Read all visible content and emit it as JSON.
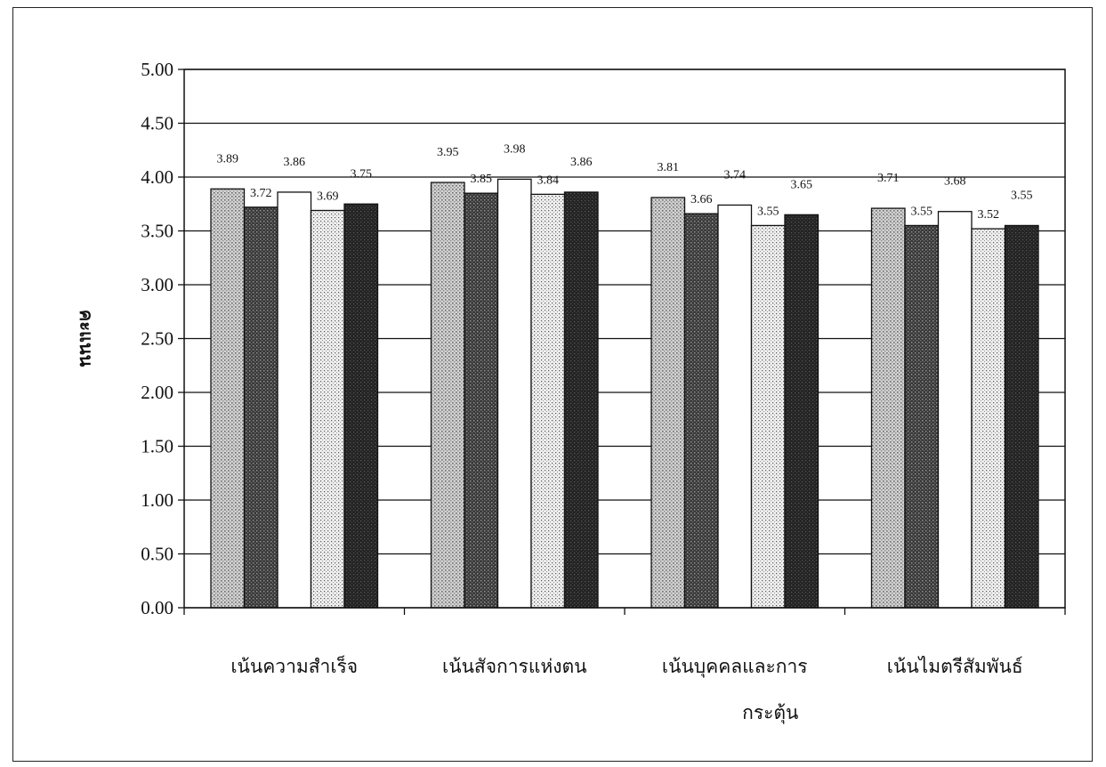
{
  "chart_data": {
    "type": "bar",
    "title": "",
    "xlabel": "",
    "ylabel": "คะแนน",
    "ylim": [
      0,
      5
    ],
    "yticks": [
      "0.00",
      "0.50",
      "1.00",
      "1.50",
      "2.00",
      "2.50",
      "3.00",
      "3.50",
      "4.00",
      "4.50",
      "5.00"
    ],
    "grid": true,
    "categories": [
      [
        "เน้นความสำเร็จ"
      ],
      [
        "เน้นสัจการแห่งตน"
      ],
      [
        "เน้นบุคคลและการ",
        "กระตุ้น"
      ],
      [
        "เน้นไมตรีสัมพันธ์"
      ]
    ],
    "series": [
      {
        "values": [
          3.89,
          3.95,
          3.81,
          3.71
        ],
        "labels": [
          "3.89",
          "3.95",
          "3.81",
          "3.71"
        ],
        "pattern": "light-dots"
      },
      {
        "values": [
          3.72,
          3.85,
          3.66,
          3.55
        ],
        "labels": [
          "3.72",
          "3.85",
          "3.66",
          "3.55"
        ],
        "pattern": "dark-dots"
      },
      {
        "values": [
          3.86,
          3.98,
          3.74,
          3.68
        ],
        "labels": [
          "3.86",
          "3.98",
          "3.74",
          "3.68"
        ],
        "pattern": "white"
      },
      {
        "values": [
          3.69,
          3.84,
          3.55,
          3.52
        ],
        "labels": [
          "3.69",
          "3.84",
          "3.55",
          "3.52"
        ],
        "pattern": "fine-dots"
      },
      {
        "values": [
          3.75,
          3.86,
          3.65,
          3.55
        ],
        "labels": [
          "3.75",
          "3.86",
          "3.65",
          "3.55"
        ],
        "pattern": "very-dark"
      }
    ]
  }
}
